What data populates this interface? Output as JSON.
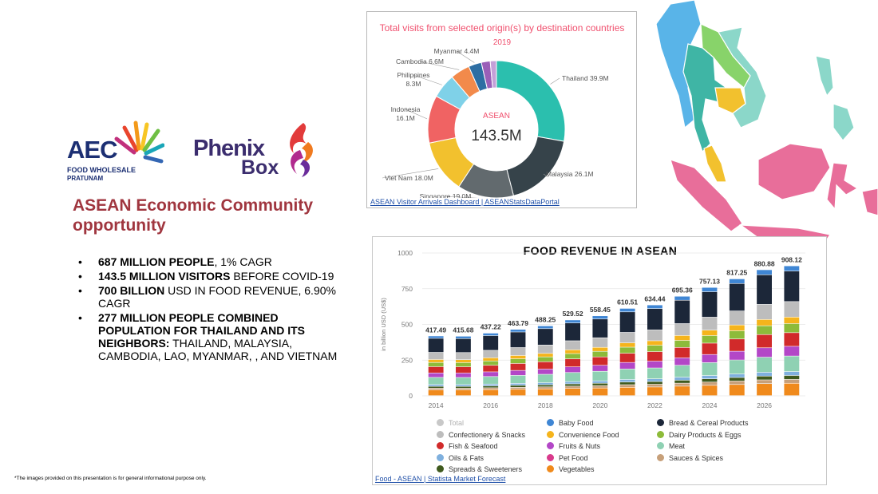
{
  "logos": {
    "aec": {
      "main": "AEC",
      "sub1": "FOOD WHOLESALE",
      "sub2": "PRATUNAM"
    },
    "phenix": {
      "line1": "Phenix",
      "line2": "Box"
    }
  },
  "headline": "ASEAN Economic Community opportunity",
  "bullets": [
    {
      "bold": "687 MILLION PEOPLE",
      "rest": ", 1% CAGR"
    },
    {
      "bold": "143.5 MILLION VISITORS",
      "rest": " BEFORE COVID-19"
    },
    {
      "bold": "700 BILLION",
      "rest": " USD IN FOOD REVENUE, 6.90% CAGR"
    },
    {
      "bold": "277 MILLION PEOPLE COMBINED POPULATION FOR THAILAND AND ITS NEIGHBORS:",
      "rest": " THAILAND, MALAYSIA, CAMBODIA, LAO, MYANMAR, , AND VIETNAM"
    }
  ],
  "bullet_glyph": "•",
  "footnote": "*The images provided on this presentation is for general informational purpose only.",
  "chart_data": [
    {
      "type": "pie",
      "title": "Total visits from selected origin(s) by destination countries",
      "subtitle": "2019",
      "center_label": "ASEAN",
      "center_value": "143.5M",
      "source": "ASEAN Visitor Arrivals Dashboard | ASEANStatsDataPortal",
      "slices": [
        {
          "name": "Thailand",
          "label": "Thailand 39.9M",
          "value": 39.9,
          "color": "#2bbfae"
        },
        {
          "name": "Malaysia",
          "label": "Malaysia 26.1M",
          "value": 26.1,
          "color": "#36434a"
        },
        {
          "name": "Singapore",
          "label": "Singapore 19.0M",
          "value": 19.0,
          "color": "#626a6e"
        },
        {
          "name": "Viet Nam",
          "label": "Viet Nam 18.0M",
          "value": 18.0,
          "color": "#f2c12e"
        },
        {
          "name": "Indonesia",
          "label": "Indonesia 16.1M",
          "value": 16.1,
          "color": "#f06363"
        },
        {
          "name": "Philippines",
          "label": "Philippines 8.3M",
          "value": 8.3,
          "color": "#7fd1e8"
        },
        {
          "name": "Cambodia",
          "label": "Cambodia 6.6M",
          "value": 6.6,
          "color": "#f28a4b"
        },
        {
          "name": "Myanmar",
          "label": "Myanmar 4.4M",
          "value": 4.4,
          "color": "#2d6ea3"
        },
        {
          "name": "Lao",
          "label": "",
          "value": 3.0,
          "color": "#9a5fb8"
        },
        {
          "name": "Brunei",
          "label": "",
          "value": 2.1,
          "color": "#c4a0d8"
        }
      ],
      "title_color": "#f0506e"
    },
    {
      "type": "bar",
      "stacked": true,
      "title": "FOOD REVENUE IN ASEAN",
      "ylabel": "in billion USD (US$)",
      "ylim": [
        0,
        1000
      ],
      "yticks": [
        0,
        250,
        500,
        750,
        1000
      ],
      "xtick_labels": [
        "2014",
        "2016",
        "2018",
        "2020",
        "2022",
        "2024",
        "2026"
      ],
      "categories": [
        "2014",
        "2015",
        "2016",
        "2017",
        "2018",
        "2019",
        "2020",
        "2021",
        "2022",
        "2023",
        "2024",
        "2025",
        "2026",
        "2027"
      ],
      "totals": [
        417.49,
        415.68,
        437.22,
        463.79,
        488.25,
        529.52,
        558.45,
        610.51,
        634.44,
        695.36,
        757.13,
        817.25,
        880.88,
        908.12
      ],
      "total_labels": [
        "417.49",
        "415.68",
        "437.22",
        "463.79",
        "488.25",
        "529.52",
        "558.45",
        "610.51",
        "634.44",
        "695.36",
        "757.13",
        "817.25",
        "880.88",
        "908.12"
      ],
      "segment_order": [
        "Vegetables",
        "Sauces & Spices",
        "Spreads & Sweeteners",
        "Oils & Fats",
        "Meat",
        "Fruits & Nuts",
        "Fish & Seafood",
        "Dairy Products & Eggs",
        "Convenience Food",
        "Confectionery & Snacks",
        "Bread & Cereal Products",
        "Baby Food"
      ],
      "segment_share": [
        0.095,
        0.03,
        0.03,
        0.03,
        0.12,
        0.075,
        0.105,
        0.07,
        0.05,
        0.12,
        0.235,
        0.04
      ],
      "series": [
        {
          "name": "Total",
          "color": "#c8c8c8",
          "muted": true
        },
        {
          "name": "Baby Food",
          "color": "#3f86d4"
        },
        {
          "name": "Bread & Cereal Products",
          "color": "#1c2739"
        },
        {
          "name": "Confectionery & Snacks",
          "color": "#bdbdbd"
        },
        {
          "name": "Convenience Food",
          "color": "#f5b41c"
        },
        {
          "name": "Dairy Products & Eggs",
          "color": "#8dbb3a"
        },
        {
          "name": "Fish & Seafood",
          "color": "#d12a2a"
        },
        {
          "name": "Fruits & Nuts",
          "color": "#b347c7"
        },
        {
          "name": "Meat",
          "color": "#8fd1b3"
        },
        {
          "name": "Oils & Fats",
          "color": "#7fb0de"
        },
        {
          "name": "Pet Food",
          "color": "#d93a8c"
        },
        {
          "name": "Sauces & Spices",
          "color": "#c7a07a"
        },
        {
          "name": "Spreads & Sweeteners",
          "color": "#3f5a1e"
        },
        {
          "name": "Vegetables",
          "color": "#f08a1c"
        }
      ],
      "source": "Food - ASEAN | Statista Market Forecast"
    }
  ],
  "map_colors": [
    "#59b4e8",
    "#88d36a",
    "#3fb5a5",
    "#f2c12e",
    "#e86e9a",
    "#8bd7c9"
  ]
}
